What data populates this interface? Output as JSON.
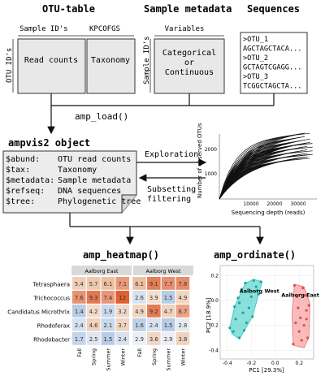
{
  "otu_table": {
    "title": "OTU-table",
    "sample_ids": "Sample ID's",
    "kpcofgs": "KPCOFGS",
    "otu_ids": "OTU ID's",
    "read_counts": "Read counts",
    "taxonomy": "Taxonomy"
  },
  "metadata": {
    "title": "Sample metadata",
    "variables": "Variables",
    "sample_ids": "Sample ID's",
    "line1": "Categorical",
    "line2": "or",
    "line3": "Continuous"
  },
  "sequences": {
    "title": "Sequences",
    "lines": [
      ">OTU_1",
      "AGCTAGCTACA...",
      ">OTU_2",
      "GCTAGTCGAGG...",
      ">OTU_3",
      "TCGGCTAGCTA..."
    ]
  },
  "amp_load": "amp_load()",
  "ampvis_title": "ampvis2 object",
  "ampvis_rows": [
    {
      "key": "$abund:",
      "val": "OTU read counts"
    },
    {
      "key": "$tax:",
      "val": "Taxonomy"
    },
    {
      "key": "$metadata:",
      "val": "Sample metadata"
    },
    {
      "key": "$refseq:",
      "val": "DNA sequences"
    },
    {
      "key": "$tree:",
      "val": "Phylogenetic tree"
    }
  ],
  "exploration": "Exploration",
  "subsetting": "Subsetting",
  "filtering": "filtering",
  "rarecurve": {
    "ylabel": "Number of observed OTUs",
    "xlabel": "Sequencing depth (reads)",
    "yticks": [
      "1000",
      "2000"
    ],
    "xticks": [
      "10000",
      "20000",
      "30000"
    ]
  },
  "heatmap_title": "amp_heatmap()",
  "ordinate_title": "amp_ordinate()",
  "heatmap": {
    "groups": [
      "Aalborg East",
      "Aalborg West"
    ],
    "rows": [
      "Tetrasphaera",
      "Trichococcus",
      "Candidatus Microthrix",
      "Rhodoferax",
      "Rhodobacter"
    ],
    "cols": [
      "Fall",
      "Spring",
      "Summer",
      "Winter"
    ],
    "values": [
      [
        "5.4",
        "5.7",
        "6.1",
        "7.1",
        "6.1",
        "9.1",
        "7.7",
        "7.8"
      ],
      [
        "7.6",
        "9.3",
        "7.4",
        "12",
        "2.6",
        "3.9",
        "1.5",
        "4.9"
      ],
      [
        "1.4",
        "4.2",
        "1.9",
        "3.2",
        "4.9",
        "9.2",
        "4.7",
        "6.7"
      ],
      [
        "2.4",
        "4.6",
        "2.1",
        "3.7",
        "1.6",
        "2.4",
        "1.5",
        "2.8"
      ],
      [
        "1.7",
        "2.5",
        "1.5",
        "2.4",
        "2.9",
        "3.6",
        "2.9",
        "3.8"
      ]
    ],
    "colors": [
      [
        "#f0cfb8",
        "#efc9ae",
        "#ecbfa0",
        "#e99a7a",
        "#ecbfa0",
        "#e37d5a",
        "#e88f6e",
        "#e88c6a"
      ],
      [
        "#e89272",
        "#e27852",
        "#e99678",
        "#e06030",
        "#d7e1ef",
        "#f4e0d0",
        "#b8cce6",
        "#f2d6c2"
      ],
      [
        "#b8cce6",
        "#f3dccb",
        "#c9d8ec",
        "#efd9ca",
        "#f2d6c2",
        "#e27c58",
        "#f0d3bf",
        "#eaa385"
      ],
      [
        "#d8e1ee",
        "#f0d1bc",
        "#cad8eb",
        "#f0d5c3",
        "#bdd0e8",
        "#d8e1ee",
        "#b8cce6",
        "#e6ebf1"
      ],
      [
        "#c4d4ea",
        "#dee6f0",
        "#b8cce6",
        "#d8e1ee",
        "#ebeff3",
        "#f0d6c4",
        "#ebeff3",
        "#f0d2bf"
      ]
    ]
  },
  "ordination": {
    "xlabel": "PC1 [29.3%]",
    "ylabel": "PC2 [18.9%]",
    "xticks": [
      "-0.4",
      "-0.2",
      "0.0",
      "0.2"
    ],
    "yticks": [
      "0.2",
      "0.0",
      "-0.2",
      "-0.4"
    ],
    "west_label": "Aalborg West",
    "east_label": "Aalborg East",
    "west_color": "#2cc6c0",
    "east_color": "#f06b6b"
  }
}
